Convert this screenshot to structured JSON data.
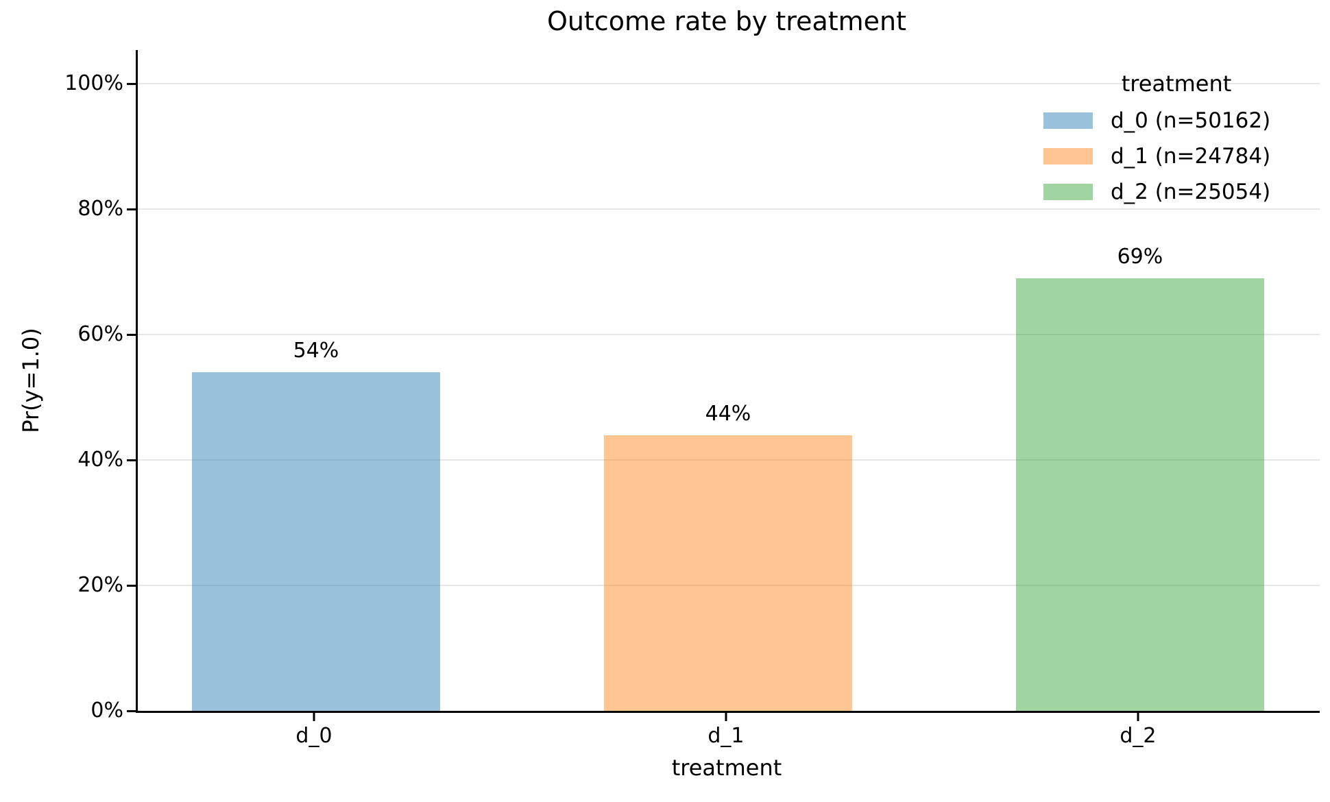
{
  "chart_data": {
    "type": "bar",
    "title": "Outcome rate by treatment",
    "xlabel": "treatment",
    "ylabel": "Pr(y=1.0)",
    "categories": [
      "d_0",
      "d_1",
      "d_2"
    ],
    "values_percent": [
      54,
      44,
      69
    ],
    "bar_labels": [
      "54%",
      "44%",
      "69%"
    ],
    "bar_colors": [
      "rgba(31,119,180,0.45)",
      "rgba(255,127,14,0.45)",
      "rgba(44,160,44,0.45)"
    ],
    "y_ticks_percent": [
      0,
      20,
      40,
      60,
      80,
      100
    ],
    "y_tick_labels": [
      "0%",
      "20%",
      "40%",
      "60%",
      "80%",
      "100%"
    ],
    "ylim_percent": [
      0,
      105.4
    ],
    "grid": "horizontal",
    "gridline_color": "#e6e6e6",
    "axis_color": "#000000",
    "legend": {
      "title": "treatment",
      "position": "upper-right",
      "entries": [
        {
          "label": "d_0 (n=50162)",
          "color": "rgba(31,119,180,0.45)"
        },
        {
          "label": "d_1 (n=24784)",
          "color": "rgba(255,127,14,0.45)"
        },
        {
          "label": "d_2 (n=25054)",
          "color": "rgba(44,160,44,0.45)"
        }
      ]
    }
  }
}
